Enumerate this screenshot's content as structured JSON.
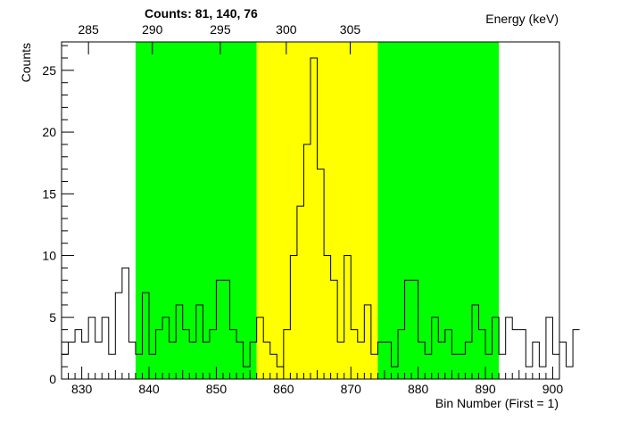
{
  "chart_data": {
    "type": "histogram",
    "title": "",
    "counts_label": "Counts:   81,   140,   76",
    "xlabel": "Bin Number (First = 1)",
    "ylabel": "Counts",
    "x2label": "Energy (keV)",
    "xlim": [
      827,
      901
    ],
    "ylim": [
      0,
      27.3
    ],
    "x_ticks": [
      "830",
      "840",
      "850",
      "860",
      "870",
      "880",
      "890",
      "900"
    ],
    "y_ticks": [
      "0",
      "5",
      "10",
      "15",
      "20",
      "25"
    ],
    "energy_ticks": [
      {
        "label": "285",
        "bin": 831
      },
      {
        "label": "290",
        "bin": 840.5
      },
      {
        "label": "295",
        "bin": 850.6
      },
      {
        "label": "300",
        "bin": 860.4
      },
      {
        "label": "305",
        "bin": 869.9
      }
    ],
    "regions": [
      {
        "name": "left-background",
        "start": 838,
        "end": 856,
        "color": "#00ff00"
      },
      {
        "name": "peak",
        "start": 856,
        "end": 874,
        "color": "#ffff00"
      },
      {
        "name": "right-background",
        "start": 874,
        "end": 892,
        "color": "#00ff00"
      }
    ],
    "bin_start": 827,
    "bin_width": 1,
    "values": [
      2,
      3,
      4,
      3,
      5,
      3,
      5,
      2,
      7,
      9,
      3,
      2,
      7,
      2,
      4,
      5,
      3,
      6,
      4,
      3,
      6,
      3,
      4,
      8,
      8,
      4,
      3,
      1,
      3,
      5,
      3,
      2,
      1,
      4,
      10,
      14,
      19,
      26,
      17,
      10,
      8,
      3,
      10,
      4,
      3,
      6,
      2,
      3,
      3,
      1,
      4,
      8,
      8,
      3,
      2,
      5,
      3,
      4,
      2,
      2,
      3,
      6,
      4,
      2,
      5,
      2,
      5,
      4,
      4,
      1,
      3,
      1,
      5,
      2,
      3,
      1,
      4
    ]
  }
}
